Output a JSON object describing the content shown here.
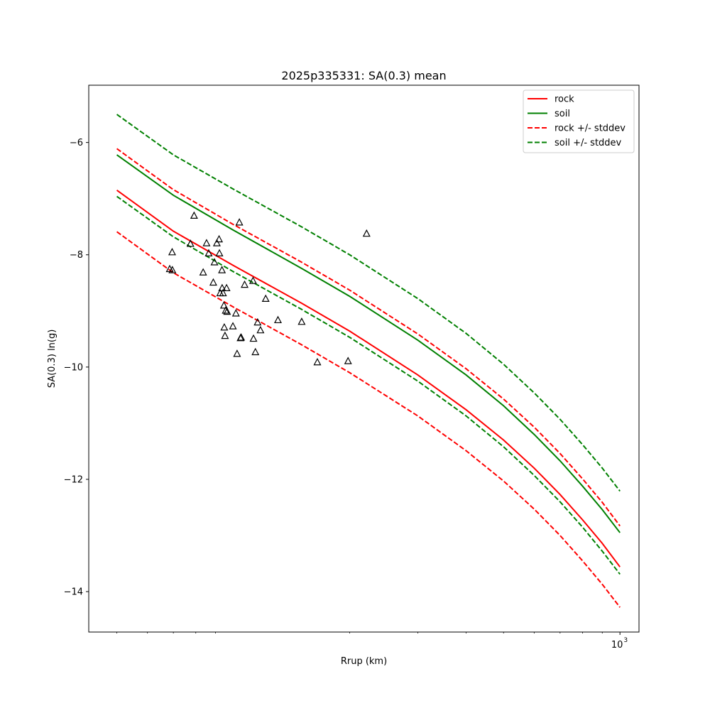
{
  "chart_data": {
    "type": "line",
    "title": "2025p335331: SA(0.3) mean",
    "xlabel": "Rrup (km)",
    "ylabel": "SA(0.3) ln(g)",
    "xscale": "log",
    "xlim": [
      42.3,
      1120
    ],
    "ylim": [
      -14.72,
      -4.98
    ],
    "x_ticks": [
      {
        "value": 1000,
        "label": "10",
        "sup": "3"
      }
    ],
    "y_ticks": [
      {
        "value": -14,
        "label": "−14"
      },
      {
        "value": -12,
        "label": "−12"
      },
      {
        "value": -10,
        "label": "−10"
      },
      {
        "value": -8,
        "label": "−8"
      },
      {
        "value": -6,
        "label": "−6"
      }
    ],
    "grid": false,
    "legend_position": "top-right",
    "series": [
      {
        "key": "rock",
        "name": "rock",
        "color": "#ff0000",
        "style": "solid",
        "x": [
          50,
          70,
          100,
          150,
          200,
          300,
          400,
          500,
          600,
          700,
          800,
          900,
          1000
        ],
        "y": [
          -6.85,
          -7.58,
          -8.19,
          -8.86,
          -9.36,
          -10.14,
          -10.76,
          -11.3,
          -11.8,
          -12.27,
          -12.72,
          -13.14,
          -13.56
        ]
      },
      {
        "key": "soil",
        "name": "soil",
        "color": "#008000",
        "style": "solid",
        "x": [
          50,
          70,
          100,
          150,
          200,
          300,
          400,
          500,
          600,
          700,
          800,
          900,
          1000
        ],
        "y": [
          -6.22,
          -6.94,
          -7.56,
          -8.24,
          -8.74,
          -9.52,
          -10.14,
          -10.69,
          -11.2,
          -11.67,
          -12.12,
          -12.54,
          -12.95
        ]
      },
      {
        "key": "rock_upper",
        "name": "rock +/- stddev",
        "color": "#ff0000",
        "style": "dashed",
        "x": [
          50,
          70,
          100,
          150,
          200,
          300,
          400,
          500,
          600,
          700,
          800,
          900,
          1000
        ],
        "y": [
          -6.11,
          -6.84,
          -7.46,
          -8.13,
          -8.63,
          -9.41,
          -10.03,
          -10.57,
          -11.07,
          -11.54,
          -11.99,
          -12.41,
          -12.83
        ]
      },
      {
        "key": "rock_lower",
        "name": "",
        "color": "#ff0000",
        "style": "dashed",
        "x": [
          50,
          70,
          100,
          150,
          200,
          300,
          400,
          500,
          600,
          700,
          800,
          900,
          1000
        ],
        "y": [
          -7.59,
          -8.32,
          -8.93,
          -9.6,
          -10.1,
          -10.87,
          -11.49,
          -12.03,
          -12.53,
          -13.0,
          -13.45,
          -13.87,
          -14.28
        ]
      },
      {
        "key": "soil_upper",
        "name": "",
        "color": "#008000",
        "style": "dashed",
        "x": [
          50,
          70,
          100,
          150,
          200,
          300,
          400,
          500,
          600,
          700,
          800,
          900,
          1000
        ],
        "y": [
          -5.5,
          -6.22,
          -6.83,
          -7.5,
          -8.0,
          -8.78,
          -9.4,
          -9.95,
          -10.46,
          -10.93,
          -11.38,
          -11.8,
          -12.21
        ]
      },
      {
        "key": "soil_lower",
        "name": "soil +/- stddev",
        "color": "#008000",
        "style": "dashed",
        "x": [
          50,
          70,
          100,
          150,
          200,
          300,
          400,
          500,
          600,
          700,
          800,
          900,
          1000
        ],
        "y": [
          -6.96,
          -7.68,
          -8.3,
          -8.97,
          -9.47,
          -10.25,
          -10.87,
          -11.42,
          -11.93,
          -12.4,
          -12.85,
          -13.28,
          -13.69
        ]
      }
    ],
    "legend": [
      {
        "label": "rock",
        "color": "#ff0000",
        "style": "solid"
      },
      {
        "label": "soil",
        "color": "#008000",
        "style": "solid"
      },
      {
        "label": "rock +/- stddev",
        "color": "#ff0000",
        "style": "dashed"
      },
      {
        "label": "soil +/- stddev",
        "color": "#008000",
        "style": "dashed"
      }
    ],
    "observations": {
      "marker": "triangle-open",
      "color": "#000000",
      "points": [
        {
          "x": 68.5,
          "y": -8.25
        },
        {
          "x": 69.5,
          "y": -7.95
        },
        {
          "x": 69.6,
          "y": -8.27
        },
        {
          "x": 77.5,
          "y": -7.8
        },
        {
          "x": 79.2,
          "y": -7.3
        },
        {
          "x": 83.6,
          "y": -8.31
        },
        {
          "x": 85.3,
          "y": -7.79
        },
        {
          "x": 86.4,
          "y": -7.97
        },
        {
          "x": 88.8,
          "y": -8.49
        },
        {
          "x": 89.4,
          "y": -8.13
        },
        {
          "x": 90.7,
          "y": -7.79
        },
        {
          "x": 91.9,
          "y": -7.72
        },
        {
          "x": 92.1,
          "y": -7.97
        },
        {
          "x": 92.5,
          "y": -8.68
        },
        {
          "x": 93.5,
          "y": -8.27
        },
        {
          "x": 93.6,
          "y": -8.59
        },
        {
          "x": 94.1,
          "y": -8.68
        },
        {
          "x": 94.6,
          "y": -8.9
        },
        {
          "x": 94.8,
          "y": -9.29
        },
        {
          "x": 95.2,
          "y": -9.44
        },
        {
          "x": 95.6,
          "y": -8.99
        },
        {
          "x": 96.1,
          "y": -8.59
        },
        {
          "x": 96.4,
          "y": -9.01
        },
        {
          "x": 99.8,
          "y": -9.27
        },
        {
          "x": 101.6,
          "y": -9.04
        },
        {
          "x": 102.3,
          "y": -9.76
        },
        {
          "x": 103.7,
          "y": -7.42
        },
        {
          "x": 104.4,
          "y": -9.48
        },
        {
          "x": 104.8,
          "y": -9.47
        },
        {
          "x": 107.0,
          "y": -8.53
        },
        {
          "x": 112.5,
          "y": -8.46
        },
        {
          "x": 112.8,
          "y": -9.49
        },
        {
          "x": 114.1,
          "y": -9.73
        },
        {
          "x": 115.6,
          "y": -9.2
        },
        {
          "x": 117.6,
          "y": -9.34
        },
        {
          "x": 121.3,
          "y": -8.78
        },
        {
          "x": 130.5,
          "y": -9.16
        },
        {
          "x": 150.3,
          "y": -9.19
        },
        {
          "x": 165.0,
          "y": -9.91
        },
        {
          "x": 198.1,
          "y": -9.89
        },
        {
          "x": 221.2,
          "y": -7.62
        }
      ]
    }
  }
}
